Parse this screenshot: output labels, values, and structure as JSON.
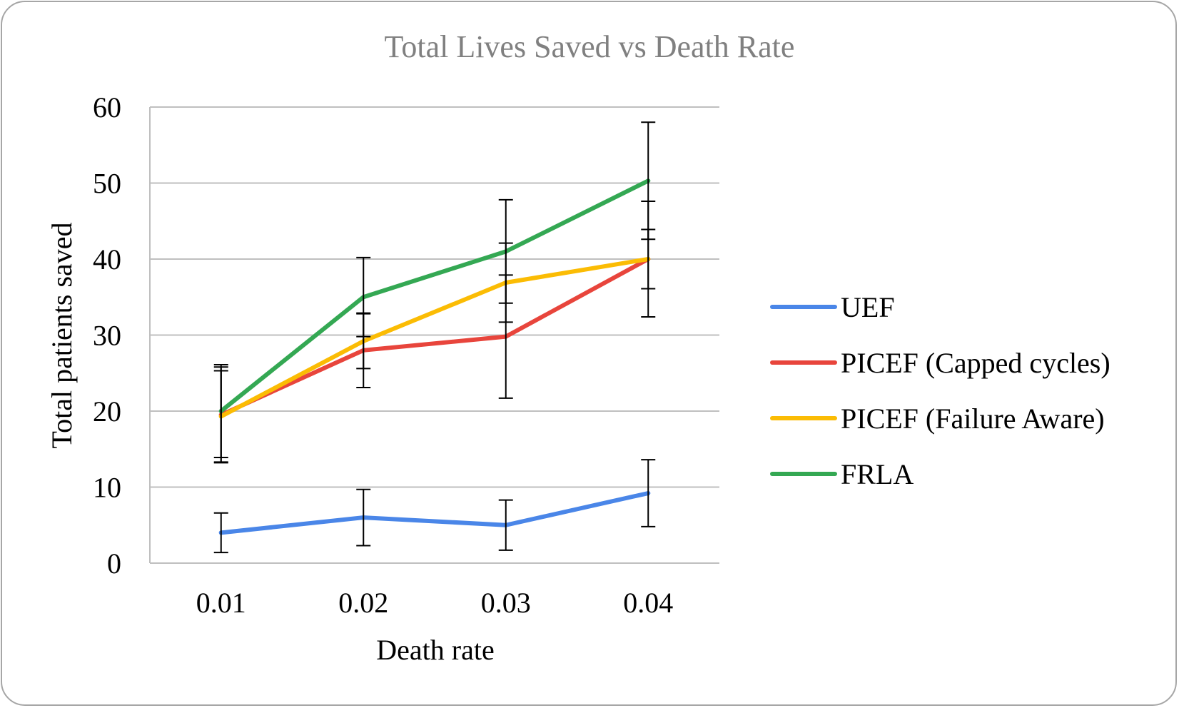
{
  "chart_data": {
    "type": "line",
    "title": "Total Lives  Saved vs Death Rate",
    "xlabel": "Death rate",
    "ylabel": "Total patients saved",
    "categories": [
      "0.01",
      "0.02",
      "0.03",
      "0.04"
    ],
    "ylim": [
      0,
      60
    ],
    "yticks": [
      "0",
      "10",
      "20",
      "30",
      "40",
      "50",
      "60"
    ],
    "grid": "horizontal",
    "legend_position": "right",
    "series": [
      {
        "name": "UEF",
        "color": "#4a86e8",
        "values": [
          4,
          6,
          5,
          9.2
        ],
        "error": [
          2.6,
          3.7,
          3.3,
          4.4
        ]
      },
      {
        "name": "PICEF (Capped cycles)",
        "color": "#e8453c",
        "values": [
          19.5,
          28,
          29.8,
          40
        ],
        "error": [
          6.3,
          4.9,
          8.1,
          3.9
        ]
      },
      {
        "name": "PICEF (Failure Aware)",
        "color": "#fbbc04",
        "values": [
          19.3,
          29.2,
          36.9,
          40
        ],
        "error": [
          6,
          3.6,
          5.2,
          7.6
        ]
      },
      {
        "name": "FRLA",
        "color": "#34a853",
        "values": [
          20,
          35,
          41,
          50.3
        ],
        "error": [
          6.1,
          5.2,
          6.8,
          7.7
        ]
      }
    ]
  }
}
